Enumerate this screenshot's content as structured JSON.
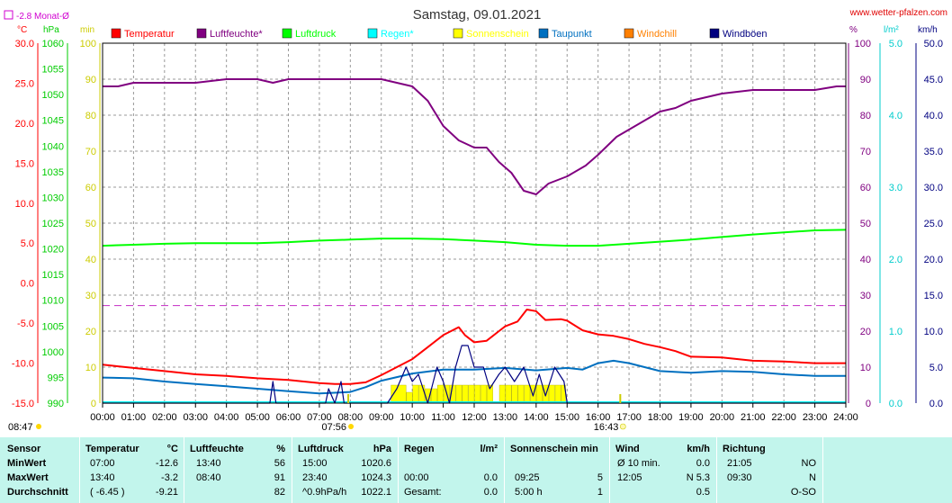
{
  "title": "Samstag, 09.01.2021",
  "site": "www.wetter-pfalzen.com",
  "month_avg": "-2.8 Monat-Ø",
  "units": {
    "celsius": "°C",
    "hpa": "hPa",
    "min": "min",
    "pct": "%",
    "lm2": "l/m²",
    "kmh": "km/h"
  },
  "legend": [
    {
      "name": "Temperatur",
      "color": "#ff0000"
    },
    {
      "name": "Luftfeuchte*",
      "color": "#800080"
    },
    {
      "name": "Luftdruck",
      "color": "#00ff00"
    },
    {
      "name": "Regen*",
      "color": "#00ffff"
    },
    {
      "name": "Sonnenschein",
      "color": "#ffff00"
    },
    {
      "name": "Taupunkt",
      "color": "#0070c0"
    },
    {
      "name": "Windchill",
      "color": "#ff8000"
    },
    {
      "name": "Windböen",
      "color": "#000080"
    }
  ],
  "axes": {
    "temp": [
      "30.0",
      "25.0",
      "20.0",
      "15.0",
      "10.0",
      "5.0",
      "0.0",
      "-5.0",
      "-10.0",
      "-15.0"
    ],
    "hpa": [
      "1060",
      "1055",
      "1050",
      "1045",
      "1040",
      "1035",
      "1030",
      "1025",
      "1020",
      "1015",
      "1010",
      "1005",
      "1000",
      "995",
      "990"
    ],
    "min": [
      "100",
      "90",
      "80",
      "70",
      "60",
      "50",
      "40",
      "30",
      "20",
      "10",
      "0"
    ],
    "pct": [
      "100",
      "90",
      "80",
      "70",
      "60",
      "50",
      "40",
      "30",
      "20",
      "10",
      "0"
    ],
    "rain": [
      "5.0",
      "4.0",
      "3.0",
      "2.0",
      "1.0",
      "0.0"
    ],
    "kmh": [
      "50.0",
      "45.0",
      "40.0",
      "35.0",
      "30.0",
      "25.0",
      "20.0",
      "15.0",
      "10.0",
      "5.0",
      "0.0"
    ],
    "time": [
      "00:00",
      "01:00",
      "02:00",
      "03:00",
      "04:00",
      "05:00",
      "06:00",
      "07:00",
      "08:00",
      "09:00",
      "10:00",
      "11:00",
      "12:00",
      "13:00",
      "14:00",
      "15:00",
      "16:00",
      "17:00",
      "18:00",
      "19:00",
      "20:00",
      "21:00",
      "22:00",
      "23:00",
      "24:00"
    ]
  },
  "markers": {
    "sunrise": "07:56",
    "sunset": "16:43",
    "now": "08:47"
  },
  "chart_data": {
    "type": "line",
    "title": "Samstag, 09.01.2021",
    "x_range": [
      0,
      24
    ],
    "series": [
      {
        "name": "Temperatur",
        "unit": "°C",
        "ylim": [
          -15,
          30
        ],
        "color": "#ff0000",
        "points": [
          [
            0,
            -10.2
          ],
          [
            0.5,
            -10.4
          ],
          [
            1,
            -10.6
          ],
          [
            2,
            -11.0
          ],
          [
            3,
            -11.4
          ],
          [
            4,
            -11.6
          ],
          [
            5,
            -11.9
          ],
          [
            6,
            -12.1
          ],
          [
            7,
            -12.5
          ],
          [
            7.5,
            -12.6
          ],
          [
            8,
            -12.6
          ],
          [
            8.5,
            -12.4
          ],
          [
            9,
            -11.5
          ],
          [
            9.5,
            -10.5
          ],
          [
            10,
            -9.5
          ],
          [
            10.5,
            -8.0
          ],
          [
            11,
            -6.5
          ],
          [
            11.5,
            -5.5
          ],
          [
            11.7,
            -6.5
          ],
          [
            12,
            -7.4
          ],
          [
            12.4,
            -7.2
          ],
          [
            12.8,
            -6.0
          ],
          [
            13,
            -5.4
          ],
          [
            13.4,
            -4.8
          ],
          [
            13.7,
            -3.3
          ],
          [
            14,
            -3.5
          ],
          [
            14.3,
            -4.6
          ],
          [
            14.8,
            -4.5
          ],
          [
            15,
            -4.7
          ],
          [
            15.5,
            -5.9
          ],
          [
            16,
            -6.4
          ],
          [
            16.5,
            -6.6
          ],
          [
            17,
            -7.0
          ],
          [
            17.5,
            -7.6
          ],
          [
            18,
            -8.0
          ],
          [
            18.5,
            -8.5
          ],
          [
            19,
            -9.2
          ],
          [
            20,
            -9.3
          ],
          [
            21,
            -9.7
          ],
          [
            22,
            -9.8
          ],
          [
            23,
            -10.0
          ],
          [
            24,
            -10.0
          ]
        ]
      },
      {
        "name": "Luftfeuchte*",
        "unit": "%",
        "ylim": [
          0,
          100
        ],
        "color": "#800080",
        "points": [
          [
            0,
            88
          ],
          [
            0.5,
            88
          ],
          [
            1,
            89
          ],
          [
            2,
            89
          ],
          [
            3,
            89
          ],
          [
            4,
            90
          ],
          [
            5,
            90
          ],
          [
            5.5,
            89
          ],
          [
            6,
            90
          ],
          [
            7,
            90
          ],
          [
            8,
            90
          ],
          [
            9,
            90
          ],
          [
            9.5,
            89
          ],
          [
            10,
            88
          ],
          [
            10.5,
            84
          ],
          [
            11,
            77
          ],
          [
            11.5,
            73
          ],
          [
            12,
            71
          ],
          [
            12.4,
            71
          ],
          [
            12.8,
            67
          ],
          [
            13.2,
            64
          ],
          [
            13.6,
            59
          ],
          [
            14,
            58
          ],
          [
            14.4,
            61
          ],
          [
            15,
            63
          ],
          [
            15.6,
            66
          ],
          [
            16,
            69
          ],
          [
            16.6,
            74
          ],
          [
            17,
            76
          ],
          [
            17.6,
            79
          ],
          [
            18,
            81
          ],
          [
            18.5,
            82
          ],
          [
            19,
            84
          ],
          [
            20,
            86
          ],
          [
            21,
            87
          ],
          [
            22,
            87
          ],
          [
            23,
            87
          ],
          [
            23.7,
            88
          ],
          [
            24,
            88
          ]
        ]
      },
      {
        "name": "Luftdruck",
        "unit": "hPa",
        "ylim": [
          990,
          1060
        ],
        "color": "#00ff00",
        "points": [
          [
            0,
            1020.6
          ],
          [
            1,
            1020.8
          ],
          [
            2,
            1021.0
          ],
          [
            3,
            1021.1
          ],
          [
            4,
            1021.1
          ],
          [
            5,
            1021.1
          ],
          [
            6,
            1021.3
          ],
          [
            7,
            1021.6
          ],
          [
            8,
            1021.8
          ],
          [
            9,
            1022.0
          ],
          [
            10,
            1022.0
          ],
          [
            11,
            1021.9
          ],
          [
            12,
            1021.6
          ],
          [
            13,
            1021.3
          ],
          [
            14,
            1020.8
          ],
          [
            15,
            1020.6
          ],
          [
            16,
            1020.6
          ],
          [
            17,
            1021.0
          ],
          [
            18,
            1021.4
          ],
          [
            19,
            1021.8
          ],
          [
            20,
            1022.3
          ],
          [
            21,
            1022.8
          ],
          [
            22,
            1023.2
          ],
          [
            23,
            1023.6
          ],
          [
            24,
            1023.7
          ]
        ]
      },
      {
        "name": "Taupunkt",
        "unit": "°C",
        "ylim": [
          -15,
          30
        ],
        "color": "#0070c0",
        "points": [
          [
            0,
            -11.8
          ],
          [
            1,
            -11.9
          ],
          [
            2,
            -12.3
          ],
          [
            3,
            -12.6
          ],
          [
            4,
            -12.9
          ],
          [
            5,
            -13.2
          ],
          [
            6,
            -13.5
          ],
          [
            7,
            -13.8
          ],
          [
            8,
            -13.6
          ],
          [
            8.5,
            -13.0
          ],
          [
            9,
            -12.2
          ],
          [
            10,
            -11.3
          ],
          [
            11,
            -10.8
          ],
          [
            12,
            -10.8
          ],
          [
            13,
            -10.6
          ],
          [
            14,
            -10.9
          ],
          [
            15,
            -10.6
          ],
          [
            15.5,
            -10.8
          ],
          [
            16,
            -10.0
          ],
          [
            16.5,
            -9.7
          ],
          [
            17,
            -10.0
          ],
          [
            18,
            -11.0
          ],
          [
            19,
            -11.2
          ],
          [
            20,
            -11.0
          ],
          [
            21,
            -11.1
          ],
          [
            22,
            -11.4
          ],
          [
            23,
            -11.6
          ],
          [
            24,
            -11.6
          ]
        ]
      },
      {
        "name": "Windböen",
        "unit": "km/h",
        "ylim": [
          0,
          50
        ],
        "color": "#000080",
        "points": [
          [
            0,
            0
          ],
          [
            5.4,
            0
          ],
          [
            5.5,
            3
          ],
          [
            5.6,
            0
          ],
          [
            7.2,
            0
          ],
          [
            7.3,
            2
          ],
          [
            7.5,
            0
          ],
          [
            7.7,
            3
          ],
          [
            7.8,
            0
          ],
          [
            9.2,
            0
          ],
          [
            9.5,
            2
          ],
          [
            9.8,
            5
          ],
          [
            10,
            3
          ],
          [
            10.2,
            4
          ],
          [
            10.5,
            0
          ],
          [
            10.8,
            5
          ],
          [
            11,
            3
          ],
          [
            11.2,
            0
          ],
          [
            11.4,
            5
          ],
          [
            11.6,
            8
          ],
          [
            11.8,
            8
          ],
          [
            12,
            5
          ],
          [
            12.3,
            5
          ],
          [
            12.5,
            2
          ],
          [
            12.8,
            4
          ],
          [
            13,
            5
          ],
          [
            13.3,
            3
          ],
          [
            13.6,
            5
          ],
          [
            13.9,
            1
          ],
          [
            14.1,
            4
          ],
          [
            14.3,
            1
          ],
          [
            14.6,
            5
          ],
          [
            14.9,
            3
          ],
          [
            15,
            0
          ],
          [
            24,
            0
          ]
        ]
      },
      {
        "name": "Sonnenschein",
        "unit": "min",
        "ylim": [
          0,
          100
        ],
        "color": "#ffff00",
        "bars": [
          [
            9.3,
            9.8,
            5
          ],
          [
            9.8,
            10.0,
            3
          ],
          [
            10.0,
            10.2,
            5
          ],
          [
            10.2,
            10.4,
            5
          ],
          [
            10.4,
            10.6,
            4
          ],
          [
            10.6,
            10.8,
            4
          ],
          [
            10.8,
            11.0,
            5
          ],
          [
            11.0,
            11.2,
            5
          ],
          [
            11.2,
            11.4,
            5
          ],
          [
            11.4,
            11.6,
            5
          ],
          [
            11.6,
            11.8,
            5
          ],
          [
            11.8,
            12.0,
            5
          ],
          [
            12.0,
            12.2,
            5
          ],
          [
            12.2,
            12.4,
            5
          ],
          [
            12.4,
            12.6,
            5
          ],
          [
            12.8,
            13.0,
            5
          ],
          [
            13.0,
            13.2,
            5
          ],
          [
            13.2,
            13.4,
            5
          ],
          [
            13.4,
            13.6,
            5
          ],
          [
            13.6,
            13.8,
            5
          ],
          [
            13.8,
            14.0,
            5
          ],
          [
            14.0,
            14.2,
            5
          ],
          [
            14.2,
            14.4,
            5
          ],
          [
            14.4,
            14.6,
            5
          ],
          [
            14.6,
            14.8,
            5
          ],
          [
            14.8,
            14.95,
            5
          ]
        ]
      },
      {
        "name": "Monat-Ø",
        "unit": "°C",
        "ylim": [
          -15,
          30
        ],
        "color": "#cc44cc",
        "value": -2.8
      }
    ]
  },
  "stats": {
    "headers": {
      "sensor": "Sensor",
      "temp": "Temperatur",
      "temp_u": "°C",
      "hum": "Luftfeuchte",
      "hum_u": "%",
      "press": "Luftdruck",
      "press_u": "hPa",
      "rain": "Regen",
      "rain_u": "l/m²",
      "sun": "Sonnenschein min",
      "wind": "Wind",
      "wind_u": "km/h",
      "dir": "Richtung"
    },
    "rows": [
      {
        "label": "MinWert",
        "t_time": "07:00",
        "t_val": "-12.6",
        "h_time": "13:40",
        "h_val": "56",
        "p_time": "15:00",
        "p_val": "1020.6",
        "r_time": "",
        "r_val": "",
        "s_time": "",
        "s_val": "",
        "w_time": "Ø 10 min.",
        "w_val": "0.0",
        "d_time": "21:05",
        "d_val": "NO"
      },
      {
        "label": "MaxWert",
        "t_time": "13:40",
        "t_val": "-3.2",
        "h_time": "08:40",
        "h_val": "91",
        "p_time": "23:40",
        "p_val": "1024.3",
        "r_time": "00:00",
        "r_val": "0.0",
        "s_time": "09:25",
        "s_val": "5",
        "w_time": "12:05",
        "w_val": "N 5.3",
        "d_time": "09:30",
        "d_val": "N"
      },
      {
        "label": "Durchschnitt",
        "t_time": "( -6.45 )",
        "t_val": "-9.21",
        "h_time": "",
        "h_val": "82",
        "p_time": "^0.9hPa/h",
        "p_val": "1022.1",
        "r_time": "Gesamt:",
        "r_val": "0.0",
        "s_time": "5:00 h",
        "s_val": "1",
        "w_time": "",
        "w_val": "0.5",
        "d_time": "",
        "d_val": "O-SO"
      }
    ]
  }
}
